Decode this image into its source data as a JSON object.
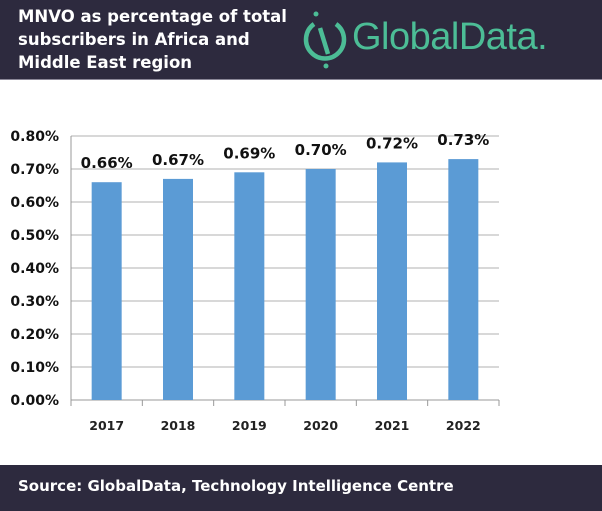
{
  "header": {
    "title": "MNVO as percentage of total subscribers in Africa and Middle East region",
    "logo": "GlobalData."
  },
  "footer": {
    "source": "Source: GlobalData, Technology Intelligence Centre"
  },
  "colors": {
    "bar": "#5b9bd5",
    "header_bg": "#2d2a3e",
    "brand": "#4cbd96"
  },
  "chart_data": {
    "type": "bar",
    "title": "MNVO as percentage of total subscribers in Africa and Middle East region",
    "categories": [
      "2017",
      "2018",
      "2019",
      "2020",
      "2021",
      "2022"
    ],
    "values": [
      0.66,
      0.67,
      0.69,
      0.7,
      0.72,
      0.73
    ],
    "data_labels": [
      "0.66%",
      "0.67%",
      "0.69%",
      "0.70%",
      "0.72%",
      "0.73%"
    ],
    "ylim": [
      0,
      0.8
    ],
    "yticks": [
      "0.00%",
      "0.10%",
      "0.20%",
      "0.30%",
      "0.40%",
      "0.50%",
      "0.60%",
      "0.70%",
      "0.80%"
    ],
    "xlabel": "",
    "ylabel": "",
    "grid": true
  }
}
